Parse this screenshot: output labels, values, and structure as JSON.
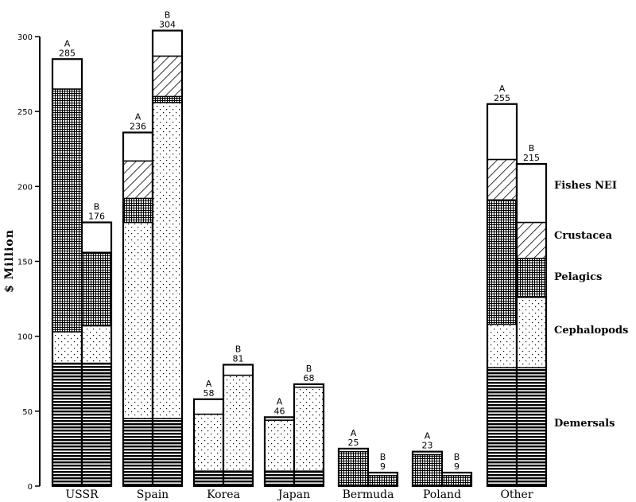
{
  "chart_data": {
    "type": "bar",
    "stacked": true,
    "grouped": true,
    "title": "",
    "xlabel": "",
    "ylabel": "$ Million",
    "ylim": [
      0,
      300
    ],
    "yticks": [
      0,
      50,
      100,
      150,
      200,
      250,
      300
    ],
    "grid": false,
    "legend_position": "right",
    "categories": [
      "USSR",
      "Spain",
      "Korea",
      "Japan",
      "Bermuda",
      "Poland",
      "Other"
    ],
    "group_labels": [
      "A",
      "B"
    ],
    "layers": [
      "Demersals",
      "Cephalopods",
      "Pelagics",
      "Crustacea",
      "Fishes NEI"
    ],
    "legend": [
      "Fishes NEI",
      "Crustacea",
      "Pelagics",
      "Cephalopods",
      "Demersals"
    ],
    "series": [
      {
        "country": "USSR",
        "group": "A",
        "total": 285,
        "Demersals": 82,
        "Cephalopods": 21,
        "Pelagics": 162,
        "Crustacea": 0,
        "Fishes NEI": 20
      },
      {
        "country": "USSR",
        "group": "B",
        "total": 176,
        "Demersals": 82,
        "Cephalopods": 25,
        "Pelagics": 49,
        "Crustacea": 0,
        "Fishes NEI": 20
      },
      {
        "country": "Spain",
        "group": "A",
        "total": 236,
        "Demersals": 45,
        "Cephalopods": 131,
        "Pelagics": 16,
        "Crustacea": 25,
        "Fishes NEI": 19
      },
      {
        "country": "Spain",
        "group": "B",
        "total": 304,
        "Demersals": 45,
        "Cephalopods": 211,
        "Pelagics": 4,
        "Crustacea": 27,
        "Fishes NEI": 17
      },
      {
        "country": "Korea",
        "group": "A",
        "total": 58,
        "Demersals": 10,
        "Cephalopods": 38,
        "Pelagics": 0,
        "Crustacea": 0,
        "Fishes NEI": 10
      },
      {
        "country": "Korea",
        "group": "B",
        "total": 81,
        "Demersals": 10,
        "Cephalopods": 64,
        "Pelagics": 0,
        "Crustacea": 0,
        "Fishes NEI": 7
      },
      {
        "country": "Japan",
        "group": "A",
        "total": 46,
        "Demersals": 10,
        "Cephalopods": 34,
        "Pelagics": 0,
        "Crustacea": 0,
        "Fishes NEI": 2
      },
      {
        "country": "Japan",
        "group": "B",
        "total": 68,
        "Demersals": 10,
        "Cephalopods": 56,
        "Pelagics": 0,
        "Crustacea": 0,
        "Fishes NEI": 2
      },
      {
        "country": "Bermuda",
        "group": "A",
        "total": 25,
        "Demersals": 0,
        "Cephalopods": 0,
        "Pelagics": 23,
        "Crustacea": 0,
        "Fishes NEI": 2
      },
      {
        "country": "Bermuda",
        "group": "B",
        "total": 9,
        "Demersals": 0,
        "Cephalopods": 0,
        "Pelagics": 7,
        "Crustacea": 0,
        "Fishes NEI": 2
      },
      {
        "country": "Poland",
        "group": "A",
        "total": 23,
        "Demersals": 0,
        "Cephalopods": 0,
        "Pelagics": 21,
        "Crustacea": 0,
        "Fishes NEI": 2
      },
      {
        "country": "Poland",
        "group": "B",
        "total": 9,
        "Demersals": 0,
        "Cephalopods": 0,
        "Pelagics": 7,
        "Crustacea": 0,
        "Fishes NEI": 2
      },
      {
        "country": "Other",
        "group": "A",
        "total": 255,
        "Demersals": 79,
        "Cephalopods": 29,
        "Pelagics": 83,
        "Crustacea": 27,
        "Fishes NEI": 37
      },
      {
        "country": "Other",
        "group": "B",
        "total": 215,
        "Demersals": 79,
        "Cephalopods": 47,
        "Pelagics": 26,
        "Crustacea": 24,
        "Fishes NEI": 39
      }
    ]
  }
}
